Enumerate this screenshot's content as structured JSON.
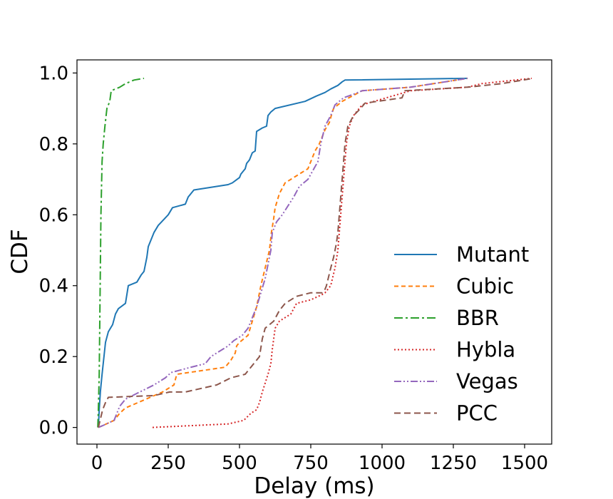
{
  "chart_data": {
    "type": "line",
    "title": "",
    "xlabel": "Delay (ms)",
    "ylabel": "CDF",
    "xlim": [
      -70,
      1595
    ],
    "ylim": [
      -0.047,
      1.037
    ],
    "xticks": [
      0,
      250,
      500,
      750,
      1000,
      1250,
      1500
    ],
    "xtick_labels": [
      "0",
      "250",
      "500",
      "750",
      "1000",
      "1250",
      "1500"
    ],
    "yticks": [
      0.0,
      0.2,
      0.4,
      0.6,
      0.8,
      1.0
    ],
    "ytick_labels": [
      "0.0",
      "0.2",
      "0.4",
      "0.6",
      "0.8",
      "1.0"
    ],
    "grid": false,
    "legend_position": "lower-right",
    "series": [
      {
        "name": "Mutant",
        "color": "#1f77b4",
        "dash": "solid",
        "points": [
          [
            5,
            0
          ],
          [
            8,
            0.05
          ],
          [
            12,
            0.1
          ],
          [
            18,
            0.15
          ],
          [
            22,
            0.18
          ],
          [
            30,
            0.24
          ],
          [
            40,
            0.27
          ],
          [
            55,
            0.29
          ],
          [
            65,
            0.32
          ],
          [
            75,
            0.335
          ],
          [
            100,
            0.35
          ],
          [
            110,
            0.4
          ],
          [
            140,
            0.41
          ],
          [
            155,
            0.43
          ],
          [
            165,
            0.44
          ],
          [
            170,
            0.46
          ],
          [
            175,
            0.48
          ],
          [
            180,
            0.51
          ],
          [
            190,
            0.53
          ],
          [
            200,
            0.55
          ],
          [
            215,
            0.57
          ],
          [
            250,
            0.6
          ],
          [
            265,
            0.62
          ],
          [
            310,
            0.63
          ],
          [
            320,
            0.65
          ],
          [
            340,
            0.67
          ],
          [
            460,
            0.685
          ],
          [
            475,
            0.69
          ],
          [
            500,
            0.705
          ],
          [
            505,
            0.715
          ],
          [
            520,
            0.73
          ],
          [
            525,
            0.745
          ],
          [
            535,
            0.755
          ],
          [
            540,
            0.765
          ],
          [
            545,
            0.775
          ],
          [
            555,
            0.78
          ],
          [
            560,
            0.835
          ],
          [
            580,
            0.845
          ],
          [
            595,
            0.85
          ],
          [
            600,
            0.88
          ],
          [
            610,
            0.89
          ],
          [
            625,
            0.9
          ],
          [
            730,
            0.92
          ],
          [
            770,
            0.935
          ],
          [
            800,
            0.945
          ],
          [
            820,
            0.955
          ],
          [
            845,
            0.965
          ],
          [
            860,
            0.975
          ],
          [
            870,
            0.98
          ],
          [
            1300,
            0.985
          ]
        ]
      },
      {
        "name": "Cubic",
        "color": "#ff7f0e",
        "dash": "6,4",
        "points": [
          [
            5,
            0
          ],
          [
            20,
            0.005
          ],
          [
            60,
            0.02
          ],
          [
            70,
            0.03
          ],
          [
            80,
            0.04
          ],
          [
            100,
            0.055
          ],
          [
            230,
            0.1
          ],
          [
            270,
            0.12
          ],
          [
            280,
            0.15
          ],
          [
            450,
            0.17
          ],
          [
            470,
            0.19
          ],
          [
            485,
            0.21
          ],
          [
            490,
            0.23
          ],
          [
            500,
            0.24
          ],
          [
            530,
            0.26
          ],
          [
            545,
            0.3
          ],
          [
            560,
            0.34
          ],
          [
            575,
            0.4
          ],
          [
            590,
            0.45
          ],
          [
            605,
            0.5
          ],
          [
            612,
            0.55
          ],
          [
            620,
            0.59
          ],
          [
            625,
            0.62
          ],
          [
            640,
            0.66
          ],
          [
            660,
            0.69
          ],
          [
            680,
            0.7
          ],
          [
            700,
            0.71
          ],
          [
            720,
            0.72
          ],
          [
            740,
            0.73
          ],
          [
            750,
            0.75
          ],
          [
            765,
            0.78
          ],
          [
            780,
            0.8
          ],
          [
            790,
            0.82
          ],
          [
            800,
            0.84
          ],
          [
            815,
            0.86
          ],
          [
            822,
            0.88
          ],
          [
            830,
            0.9
          ],
          [
            860,
            0.92
          ],
          [
            930,
            0.95
          ],
          [
            1100,
            0.96
          ],
          [
            1300,
            0.985
          ]
        ]
      },
      {
        "name": "BBR",
        "color": "#2ca02c",
        "dash": "12,4,3,4",
        "points": [
          [
            3,
            0
          ],
          [
            5,
            0.05
          ],
          [
            8,
            0.15
          ],
          [
            10,
            0.3
          ],
          [
            12,
            0.45
          ],
          [
            14,
            0.6
          ],
          [
            18,
            0.75
          ],
          [
            22,
            0.8
          ],
          [
            28,
            0.85
          ],
          [
            35,
            0.9
          ],
          [
            45,
            0.92
          ],
          [
            50,
            0.95
          ],
          [
            80,
            0.96
          ],
          [
            100,
            0.97
          ],
          [
            130,
            0.98
          ],
          [
            165,
            0.985
          ]
        ]
      },
      {
        "name": "Hybla",
        "color": "#d62728",
        "dash": "2,3",
        "points": [
          [
            195,
            0
          ],
          [
            460,
            0.01
          ],
          [
            515,
            0.02
          ],
          [
            540,
            0.04
          ],
          [
            560,
            0.05
          ],
          [
            570,
            0.07
          ],
          [
            580,
            0.1
          ],
          [
            600,
            0.15
          ],
          [
            610,
            0.18
          ],
          [
            615,
            0.22
          ],
          [
            620,
            0.25
          ],
          [
            625,
            0.28
          ],
          [
            640,
            0.3
          ],
          [
            680,
            0.32
          ],
          [
            700,
            0.35
          ],
          [
            750,
            0.36
          ],
          [
            790,
            0.375
          ],
          [
            800,
            0.38
          ],
          [
            820,
            0.4
          ],
          [
            835,
            0.45
          ],
          [
            845,
            0.5
          ],
          [
            850,
            0.55
          ],
          [
            855,
            0.6
          ],
          [
            860,
            0.65
          ],
          [
            865,
            0.7
          ],
          [
            870,
            0.75
          ],
          [
            875,
            0.8
          ],
          [
            885,
            0.85
          ],
          [
            900,
            0.88
          ],
          [
            930,
            0.91
          ],
          [
            1100,
            0.95
          ],
          [
            1300,
            0.96
          ],
          [
            1350,
            0.97
          ],
          [
            1525,
            0.985
          ]
        ]
      },
      {
        "name": "Vegas",
        "color": "#9467bd",
        "dash": "10,3,2,3,2,3",
        "points": [
          [
            5,
            0
          ],
          [
            20,
            0.005
          ],
          [
            60,
            0.02
          ],
          [
            70,
            0.04
          ],
          [
            80,
            0.06
          ],
          [
            100,
            0.08
          ],
          [
            150,
            0.1
          ],
          [
            200,
            0.12
          ],
          [
            240,
            0.14
          ],
          [
            260,
            0.155
          ],
          [
            330,
            0.17
          ],
          [
            380,
            0.18
          ],
          [
            400,
            0.2
          ],
          [
            420,
            0.21
          ],
          [
            460,
            0.23
          ],
          [
            480,
            0.245
          ],
          [
            510,
            0.26
          ],
          [
            530,
            0.28
          ],
          [
            545,
            0.31
          ],
          [
            560,
            0.34
          ],
          [
            575,
            0.38
          ],
          [
            590,
            0.42
          ],
          [
            610,
            0.5
          ],
          [
            615,
            0.55
          ],
          [
            630,
            0.58
          ],
          [
            650,
            0.6
          ],
          [
            690,
            0.65
          ],
          [
            710,
            0.68
          ],
          [
            740,
            0.7
          ],
          [
            775,
            0.75
          ],
          [
            785,
            0.8
          ],
          [
            800,
            0.85
          ],
          [
            820,
            0.88
          ],
          [
            835,
            0.91
          ],
          [
            865,
            0.93
          ],
          [
            900,
            0.94
          ],
          [
            930,
            0.95
          ],
          [
            1100,
            0.96
          ],
          [
            1300,
            0.985
          ]
        ]
      },
      {
        "name": "PCC",
        "color": "#8c564b",
        "dash": "9,5",
        "points": [
          [
            5,
            0
          ],
          [
            20,
            0.05
          ],
          [
            30,
            0.07
          ],
          [
            40,
            0.085
          ],
          [
            200,
            0.09
          ],
          [
            255,
            0.1
          ],
          [
            310,
            0.1
          ],
          [
            420,
            0.12
          ],
          [
            470,
            0.14
          ],
          [
            520,
            0.15
          ],
          [
            570,
            0.2
          ],
          [
            580,
            0.25
          ],
          [
            590,
            0.28
          ],
          [
            620,
            0.3
          ],
          [
            640,
            0.33
          ],
          [
            660,
            0.35
          ],
          [
            700,
            0.37
          ],
          [
            750,
            0.38
          ],
          [
            790,
            0.38
          ],
          [
            800,
            0.39
          ],
          [
            805,
            0.4
          ],
          [
            820,
            0.45
          ],
          [
            830,
            0.48
          ],
          [
            840,
            0.52
          ],
          [
            845,
            0.55
          ],
          [
            850,
            0.6
          ],
          [
            855,
            0.65
          ],
          [
            860,
            0.7
          ],
          [
            865,
            0.75
          ],
          [
            870,
            0.8
          ],
          [
            880,
            0.85
          ],
          [
            900,
            0.88
          ],
          [
            925,
            0.9
          ],
          [
            940,
            0.915
          ],
          [
            1070,
            0.93
          ],
          [
            1080,
            0.95
          ],
          [
            1300,
            0.96
          ],
          [
            1420,
            0.97
          ],
          [
            1530,
            0.985
          ]
        ]
      }
    ]
  }
}
